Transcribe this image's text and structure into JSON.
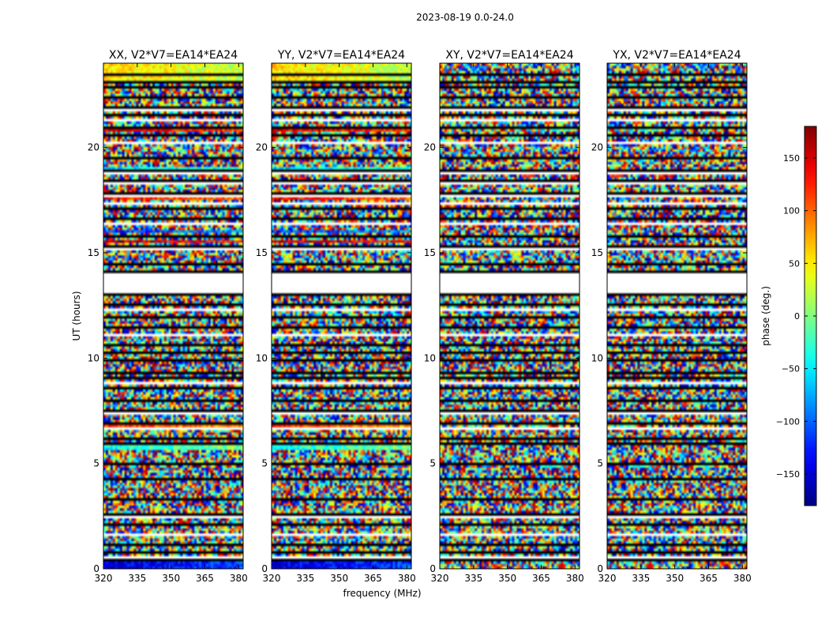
{
  "chart_data": {
    "type": "heatmap",
    "suptitle": "2023-08-19 0.0-24.0",
    "xlabel": "frequency (MHz)",
    "ylabel": "UT (hours)",
    "xlim": [
      320,
      382
    ],
    "ylim": [
      0,
      24
    ],
    "xticks": [
      320,
      335,
      350,
      365,
      380
    ],
    "xtick_labels": [
      "320",
      "335",
      "350",
      "365",
      "380"
    ],
    "yticks": [
      0,
      5,
      10,
      15,
      20
    ],
    "ytick_labels": [
      "0",
      "5",
      "10",
      "15",
      "20"
    ],
    "colorbar": {
      "label": "phase (deg.)",
      "range": [
        -180,
        180
      ],
      "ticks": [
        150,
        100,
        50,
        0,
        -50,
        -100,
        -150
      ],
      "tick_labels": [
        "150",
        "100",
        "50",
        "0",
        "−50",
        "−100",
        "−150"
      ],
      "colormap": "jet"
    },
    "panels": [
      {
        "title": "XX, V2*V7=EA14*EA24",
        "coherent": true
      },
      {
        "title": "YY, V2*V7=EA14*EA24",
        "coherent": true
      },
      {
        "title": "XY, V2*V7=EA14*EA24",
        "coherent": false
      },
      {
        "title": "YX, V2*V7=EA14*EA24",
        "coherent": false
      }
    ],
    "flagged_ut_ranges": [
      [
        0.52,
        0.6
      ],
      [
        1.38,
        1.48
      ],
      [
        1.62,
        1.72
      ],
      [
        2.45,
        2.55
      ],
      [
        2.62,
        2.7
      ],
      [
        3.3,
        3.38
      ],
      [
        5.6,
        5.68
      ],
      [
        6.65,
        6.72
      ],
      [
        7.35,
        7.42
      ],
      [
        8.8,
        8.88
      ],
      [
        9.55,
        9.62
      ],
      [
        11.1,
        11.18
      ],
      [
        12.3,
        12.38
      ],
      [
        13.1,
        14.1
      ],
      [
        15.18,
        15.26
      ],
      [
        15.55,
        15.63
      ],
      [
        16.05,
        16.13
      ],
      [
        16.3,
        16.38
      ],
      [
        17.3,
        17.38
      ],
      [
        17.62,
        17.7
      ],
      [
        18.25,
        18.33
      ],
      [
        18.75,
        18.83
      ],
      [
        20.2,
        20.28
      ],
      [
        21.3,
        21.38
      ],
      [
        21.75,
        21.83
      ],
      [
        22.15,
        22.23
      ]
    ],
    "dark_rows_ut": [
      0.45,
      0.9,
      1.15,
      2.2,
      2.6,
      3.4,
      4.3,
      5.0,
      5.95,
      6.3,
      7.0,
      7.6,
      8.0,
      8.6,
      9.1,
      9.4,
      10.0,
      10.3,
      10.7,
      11.5,
      12.0,
      12.6,
      13.05,
      14.15,
      14.5,
      15.4,
      15.9,
      16.7,
      17.1,
      17.9,
      18.5,
      19.0,
      19.6,
      20.6,
      20.95,
      21.55,
      22.0,
      22.5,
      22.9,
      23.2,
      23.55
    ],
    "colored_stripes_ut": [
      {
        "ut": [
          0.05,
          0.5
        ],
        "phase": -150
      },
      {
        "ut": [
          5.7,
          6.0
        ],
        "phase": -40
      },
      {
        "ut": [
          6.55,
          6.95
        ],
        "phase": 120
      },
      {
        "ut": [
          20.8,
          21.0
        ],
        "phase": 150
      },
      {
        "ut": [
          19.0,
          19.12
        ],
        "phase": -60
      },
      {
        "ut": [
          17.5,
          17.6
        ],
        "phase": 140
      },
      {
        "ut": [
          16.0,
          16.1
        ],
        "phase": -120
      },
      {
        "ut": [
          15.5,
          15.6
        ],
        "phase": 160
      },
      {
        "ut": [
          23.1,
          23.95
        ],
        "phase": 60
      }
    ]
  }
}
